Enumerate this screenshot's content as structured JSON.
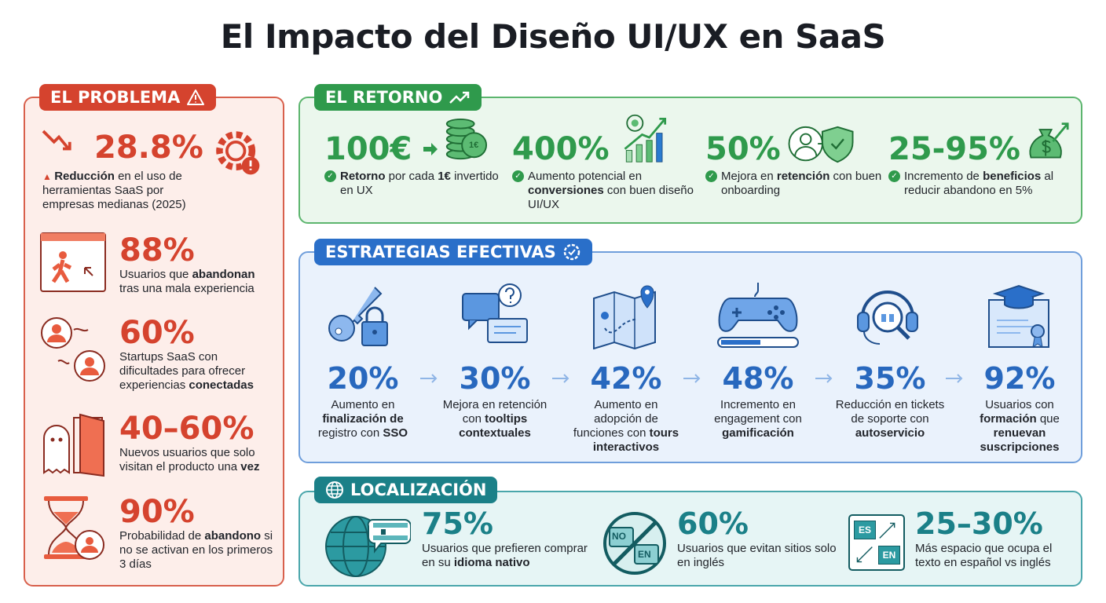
{
  "title": {
    "pre": "El ",
    "b1": "Impacto",
    "mid1": " del ",
    "b2": "Diseño UI/UX",
    "mid2": " en ",
    "b3": "SaaS"
  },
  "colors": {
    "problem": "#d5432e",
    "return": "#2f9a4c",
    "strategies": "#2868be",
    "localization": "#1b8088"
  },
  "problem": {
    "label": "EL PROBLEMA",
    "icon": "warning-icon",
    "items": [
      {
        "value": "28.8%",
        "icon": "broken-gear-icon",
        "parts": [
          {
            "t": "Reducción",
            "b": true
          },
          {
            "t": " en el uso de herramientas SaaS por empresas medianas (2025)"
          }
        ]
      },
      {
        "value": "88%",
        "icon": "walking-away-icon",
        "parts": [
          {
            "t": "Usuarios que "
          },
          {
            "t": "abandonan",
            "b": true
          },
          {
            "t": " tras una mala experiencia"
          }
        ]
      },
      {
        "value": "60%",
        "icon": "disconnected-users-icon",
        "parts": [
          {
            "t": "Startups SaaS con dificultades para ofrecer experiencias "
          },
          {
            "t": "conectadas",
            "b": true
          }
        ]
      },
      {
        "value": "40–60%",
        "icon": "ghost-door-icon",
        "parts": [
          {
            "t": "Nuevos usuarios que solo visitan el producto una "
          },
          {
            "t": "vez",
            "b": true
          }
        ]
      },
      {
        "value": "90%",
        "icon": "hourglass-icon",
        "parts": [
          {
            "t": "Probabilidad de "
          },
          {
            "t": "abandono",
            "b": true
          },
          {
            "t": " si no se activan en los primeros 3 días"
          }
        ]
      }
    ]
  },
  "return": {
    "label": "EL RETORNO",
    "icon": "trend-up-icon",
    "items": [
      {
        "value": "100€",
        "icon": "coins-icon",
        "coin": "1€",
        "parts": [
          {
            "t": "Retorno",
            "b": true
          },
          {
            "t": " por cada "
          },
          {
            "t": "1€",
            "b": true
          },
          {
            "t": " invertido en UX"
          }
        ]
      },
      {
        "value": "400%",
        "icon": "growth-chart-icon",
        "parts": [
          {
            "t": "Aumento potencial en "
          },
          {
            "t": "conversiones",
            "b": true
          },
          {
            "t": " con buen diseño UI/UX"
          }
        ]
      },
      {
        "value": "50%",
        "icon": "user-shield-icon",
        "parts": [
          {
            "t": "Mejora en "
          },
          {
            "t": "retención",
            "b": true
          },
          {
            "t": " con buen onboarding"
          }
        ]
      },
      {
        "value": "25-95%",
        "icon": "money-bag-icon",
        "parts": [
          {
            "t": "Incremento de "
          },
          {
            "t": "beneficios",
            "b": true
          },
          {
            "t": " al reducir abandono en 5%"
          }
        ]
      }
    ]
  },
  "strategies": {
    "label": "ESTRATEGIAS EFECTIVAS",
    "icon": "gear-check-icon",
    "items": [
      {
        "value": "20%",
        "icon": "key-lock-icon",
        "parts": [
          {
            "t": "Aumento en "
          },
          {
            "t": "finalización de",
            "b": true
          },
          {
            "t": " registro con "
          },
          {
            "t": "SSO",
            "b": true
          }
        ]
      },
      {
        "value": "30%",
        "icon": "tooltip-icon",
        "parts": [
          {
            "t": "Mejora en retención con "
          },
          {
            "t": "tooltips contextuales",
            "b": true
          }
        ]
      },
      {
        "value": "42%",
        "icon": "map-icon",
        "parts": [
          {
            "t": "Aumento en adopción de funciones con "
          },
          {
            "t": "tours interactivos",
            "b": true
          }
        ]
      },
      {
        "value": "48%",
        "icon": "gamepad-icon",
        "parts": [
          {
            "t": "Incremento en engagement con "
          },
          {
            "t": "gamificación",
            "b": true
          }
        ]
      },
      {
        "value": "35%",
        "icon": "support-headset-icon",
        "parts": [
          {
            "t": "Reducción en tickets de soporte con "
          },
          {
            "t": "autoservicio",
            "b": true
          }
        ]
      },
      {
        "value": "92%",
        "icon": "graduation-certificate-icon",
        "parts": [
          {
            "t": "Usuarios con "
          },
          {
            "t": "formación",
            "b": true
          },
          {
            "t": " que "
          },
          {
            "t": "renuevan suscripciones",
            "b": true
          }
        ]
      }
    ]
  },
  "localization": {
    "label": "LOCALIZACIÓN",
    "icon": "globe-icon",
    "items": [
      {
        "value": "75%",
        "icon": "globe-chat-icon",
        "parts": [
          {
            "t": "Usuarios que prefieren comprar en su "
          },
          {
            "t": "idioma nativo",
            "b": true
          }
        ]
      },
      {
        "value": "60%",
        "icon": "no-english-icon",
        "badges": [
          "NO",
          "EN"
        ],
        "parts": [
          {
            "t": "Usuarios que evitan sitios solo en inglés"
          }
        ]
      },
      {
        "value": "25–30%",
        "icon": "text-expansion-icon",
        "badges": [
          "ES",
          "EN"
        ],
        "parts": [
          {
            "t": "Más espacio que ocupa el texto en español vs inglés"
          }
        ]
      }
    ]
  }
}
